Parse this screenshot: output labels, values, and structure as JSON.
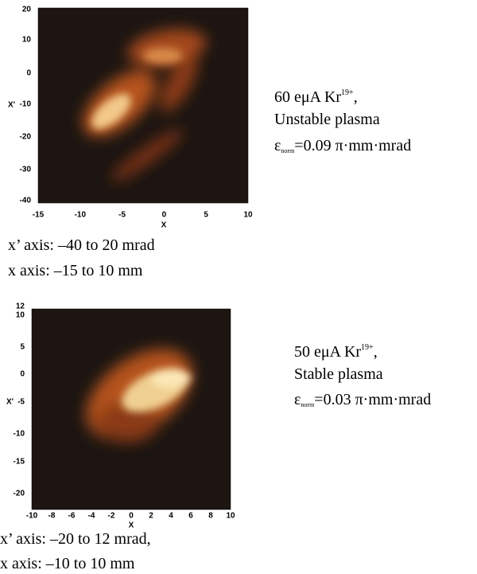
{
  "panels": [
    {
      "plot": {
        "y_label": "X'",
        "x_label": "X",
        "yticks": [
          "20",
          "10",
          "0",
          "-10",
          "-20",
          "-30",
          "-40"
        ],
        "xticks": [
          "-15",
          "-10",
          "-5",
          "0",
          "5",
          "10"
        ]
      },
      "caption": [
        "x’ axis: –40 to 20 mrad",
        "x axis: –15 to 10 mm"
      ],
      "description": {
        "line1": [
          "60 eμA Kr",
          "19+",
          ","
        ],
        "line2": "Unstable plasma",
        "line3": [
          "ε",
          "norm",
          "=0.09 π·mm·mrad"
        ]
      }
    },
    {
      "plot": {
        "y_label": "X'",
        "x_label": "X",
        "yticks": [
          "12",
          "10",
          "5",
          "0",
          "-5",
          "-10",
          "-15",
          "-20"
        ],
        "xticks": [
          "-10",
          "-8",
          "-6",
          "-4",
          "-2",
          "0",
          "2",
          "4",
          "6",
          "8",
          "10"
        ]
      },
      "caption": [
        "x’ axis: –20 to 12 mrad,",
        "x axis: –10 to 10 mm"
      ],
      "description": {
        "line1": [
          "50 eμA Kr",
          "19+",
          ","
        ],
        "line2": "Stable plasma",
        "line3": [
          "ε",
          "norm",
          "=0.03 π·mm·mrad"
        ]
      }
    }
  ]
}
